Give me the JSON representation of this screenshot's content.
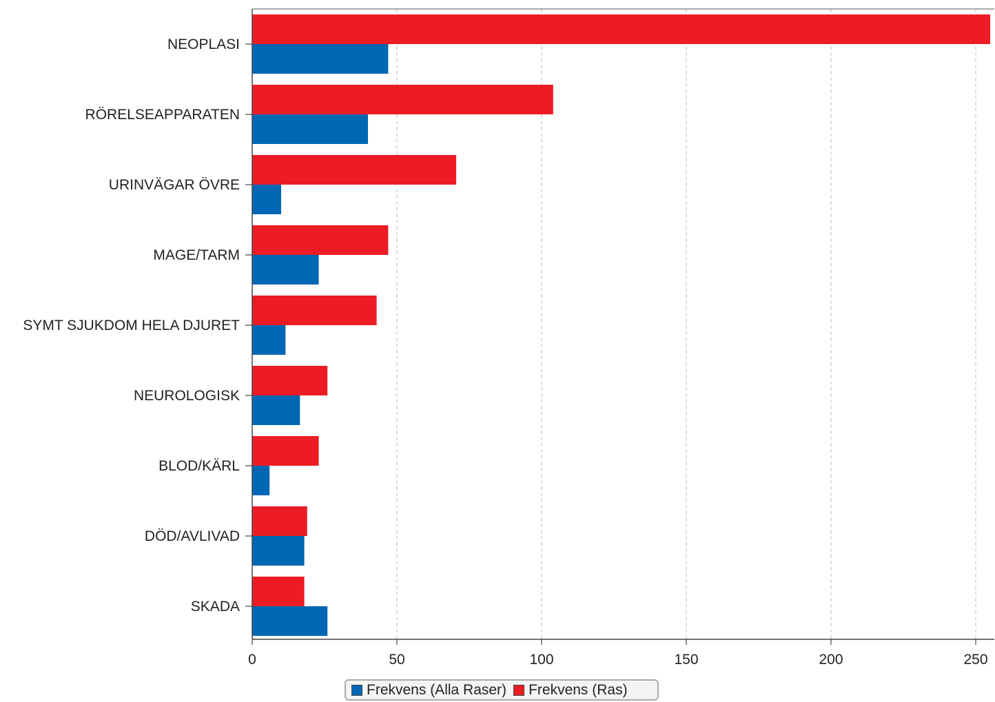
{
  "chart_data": {
    "type": "bar",
    "orientation": "horizontal",
    "categories": [
      "NEOPLASI",
      "RÖRELSEAPPARATEN",
      "URINVÄGAR ÖVRE",
      "MAGE/TARM",
      "SYMT SJUKDOM HELA DJURET",
      "NEUROLOGISK",
      "BLOD/KÄRL",
      "DÖD/AVLIVAD",
      "SKADA"
    ],
    "series": [
      {
        "name": "Frekvens (Ras)",
        "color": "#ed1c24",
        "values": [
          255,
          104,
          70.5,
          47,
          43,
          26,
          23,
          19,
          18
        ]
      },
      {
        "name": "Frekvens (Alla Raser)",
        "color": "#0067b4",
        "values": [
          47,
          40,
          10,
          23,
          11.5,
          16.5,
          6,
          18,
          26
        ]
      }
    ],
    "xticks": [
      "0",
      "50",
      "100",
      "150",
      "200",
      "250"
    ],
    "xlim": [
      0,
      255
    ],
    "grid": "vertical dashed",
    "legend": {
      "placement": "bottom-center",
      "items": [
        {
          "label": "Frekvens (Alla Raser)",
          "color": "#0067b4"
        },
        {
          "label": "Frekvens (Ras)",
          "color": "#ed1c24"
        }
      ]
    }
  }
}
